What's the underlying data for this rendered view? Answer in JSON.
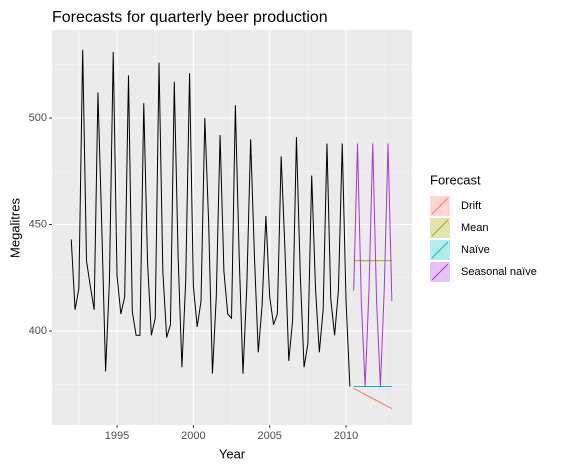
{
  "chart_data": {
    "type": "line",
    "title": "Forecasts for quarterly beer production",
    "x_label": "Year",
    "y_label": "Megalitres",
    "legend_title": "Forecast",
    "legend_position": "right",
    "xlim": [
      1990.74,
      2014.32
    ],
    "ylim": [
      355.9,
      541.3
    ],
    "xticks": [
      1995,
      2000,
      2005,
      2010
    ],
    "yticks": [
      400,
      450,
      500
    ],
    "xminor": [
      1992.5,
      1997.5,
      2002.5,
      2007.5,
      2012.5
    ],
    "yminor": [
      375,
      425,
      475,
      525
    ],
    "grid": true,
    "series": [
      {
        "color": "#000000",
        "x": [
          1992,
          1992.25,
          1992.5,
          1992.75,
          1993,
          1993.25,
          1993.5,
          1993.75,
          1994,
          1994.25,
          1994.5,
          1994.75,
          1995,
          1995.25,
          1995.5,
          1995.75,
          1996,
          1996.25,
          1996.5,
          1996.75,
          1997,
          1997.25,
          1997.5,
          1997.75,
          1998,
          1998.25,
          1998.5,
          1998.75,
          1999,
          1999.25,
          1999.5,
          1999.75,
          2000,
          2000.25,
          2000.5,
          2000.75,
          2001,
          2001.25,
          2001.5,
          2001.75,
          2002,
          2002.25,
          2002.5,
          2002.75,
          2003,
          2003.25,
          2003.5,
          2003.75,
          2004,
          2004.25,
          2004.5,
          2004.75,
          2005,
          2005.25,
          2005.5,
          2005.75,
          2006,
          2006.25,
          2006.5,
          2006.75,
          2007,
          2007.25,
          2007.5,
          2007.75,
          2008,
          2008.25,
          2008.5,
          2008.75,
          2009,
          2009.25,
          2009.5,
          2009.75,
          2010,
          2010.25
        ],
        "values": [
          443,
          410,
          420,
          532,
          433,
          421,
          410,
          512,
          449,
          381,
          423,
          531,
          426,
          408,
          416,
          520,
          409,
          398,
          398,
          507,
          432,
          398,
          406,
          526,
          428,
          397,
          403,
          517,
          435,
          383,
          424,
          521,
          421,
          402,
          414,
          500,
          451,
          380,
          416,
          492,
          428,
          408,
          406,
          506,
          435,
          380,
          421,
          490,
          435,
          390,
          412,
          454,
          416,
          403,
          408,
          482,
          438,
          386,
          405,
          491,
          427,
          383,
          394,
          473,
          420,
          390,
          410,
          488,
          415,
          398,
          419,
          488,
          414,
          374
        ]
      },
      {
        "name": "Drift",
        "color": "#F8766D",
        "x": [
          2010.5,
          2010.75,
          2011,
          2011.25,
          2011.5,
          2011.75,
          2012,
          2012.25,
          2012.5,
          2012.75,
          2013
        ],
        "values": [
          373.1,
          372.1,
          371.2,
          370.2,
          369.3,
          368.3,
          367.4,
          366.4,
          365.5,
          364.5,
          363.6
        ]
      },
      {
        "name": "Mean",
        "color": "#A3A500",
        "x": [
          2010.5,
          2010.75,
          2011,
          2011.25,
          2011.5,
          2011.75,
          2012,
          2012.25,
          2012.5,
          2012.75,
          2013
        ],
        "values": [
          433,
          433,
          433,
          433,
          433,
          433,
          433,
          433,
          433,
          433,
          433
        ]
      },
      {
        "name": "Naïve",
        "color": "#00BFC4",
        "x": [
          2010.5,
          2010.75,
          2011,
          2011.25,
          2011.5,
          2011.75,
          2012,
          2012.25,
          2012.5,
          2012.75,
          2013
        ],
        "values": [
          374,
          374,
          374,
          374,
          374,
          374,
          374,
          374,
          374,
          374,
          374
        ]
      },
      {
        "name": "Seasonal naïve",
        "color": "#A638D6",
        "x": [
          2010.5,
          2010.75,
          2011,
          2011.25,
          2011.5,
          2011.75,
          2012,
          2012.25,
          2012.5,
          2012.75,
          2013
        ],
        "values": [
          419,
          488,
          414,
          374,
          419,
          488,
          414,
          374,
          419,
          488,
          414
        ]
      }
    ]
  }
}
